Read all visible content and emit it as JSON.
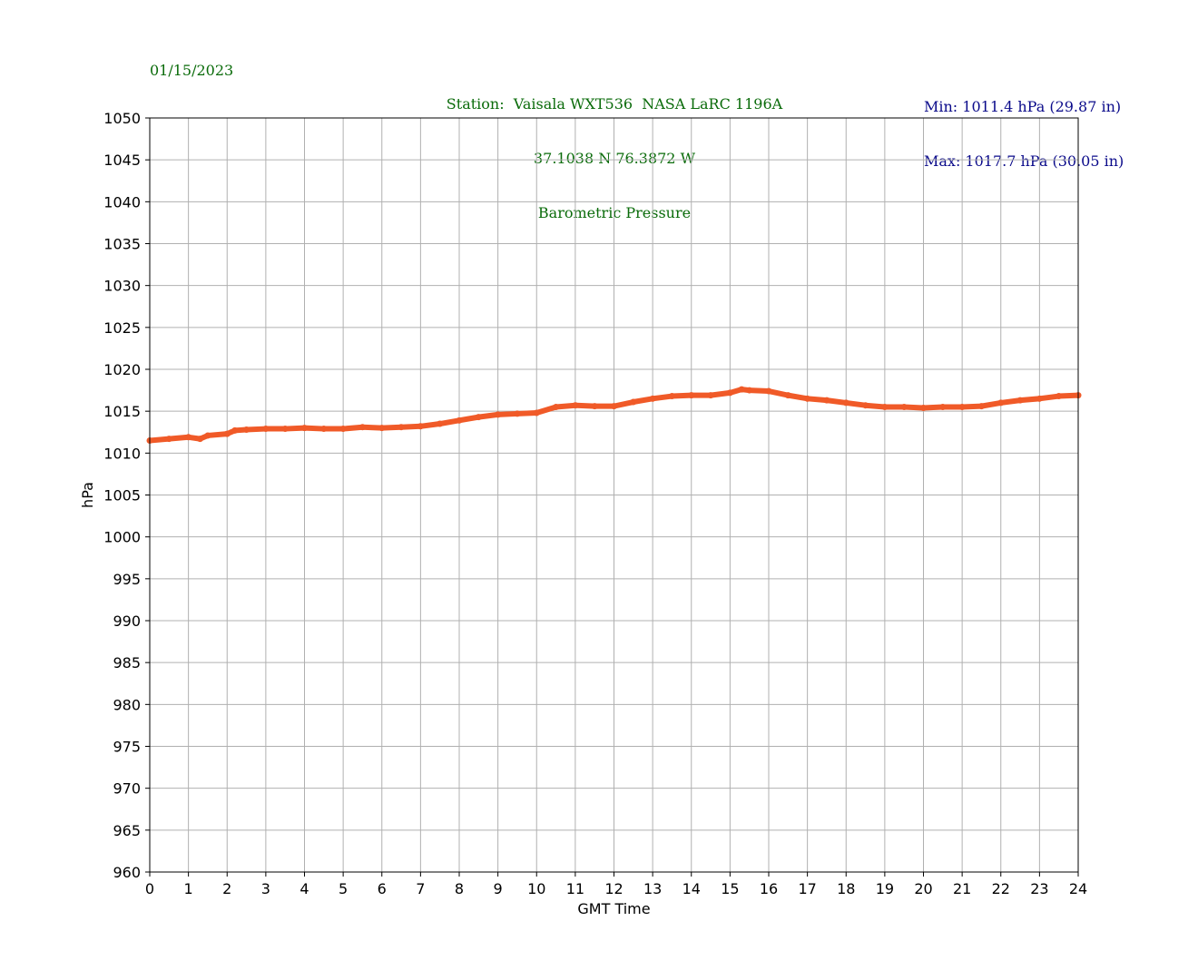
{
  "header": {
    "date": "01/15/2023",
    "station_line": "Station:  Vaisala WXT536  NASA LaRC 1196A",
    "coords_line": "37.1038 N 76.3872 W",
    "title_line": "Barometric Pressure",
    "min_line": "Min: 1011.4 hPa (29.87 in)",
    "max_line": "Max: 1017.7 hPa (30.05 in)"
  },
  "colors": {
    "header_green": "#0a6b0a",
    "header_navy": "#0a0a8a",
    "series": "#f05a28",
    "grid": "#b0b0b0"
  },
  "chart_data": {
    "type": "line",
    "xlabel": "GMT Time",
    "ylabel": "hPa",
    "xlim": [
      0,
      24
    ],
    "ylim": [
      960,
      1050
    ],
    "xticks": [
      0,
      1,
      2,
      3,
      4,
      5,
      6,
      7,
      8,
      9,
      10,
      11,
      12,
      13,
      14,
      15,
      16,
      17,
      18,
      19,
      20,
      21,
      22,
      23,
      24
    ],
    "yticks": [
      960,
      965,
      970,
      975,
      980,
      985,
      990,
      995,
      1000,
      1005,
      1010,
      1015,
      1020,
      1025,
      1030,
      1035,
      1040,
      1045,
      1050
    ],
    "grid": true,
    "series": [
      {
        "x": [
          0,
          0.5,
          1,
          1.3,
          1.5,
          2,
          2.2,
          2.5,
          3,
          3.5,
          4,
          4.5,
          5,
          5.5,
          6,
          6.5,
          7,
          7.5,
          8,
          8.5,
          9,
          9.5,
          10,
          10.5,
          11,
          11.5,
          12,
          12.5,
          13,
          13.5,
          14,
          14.5,
          15,
          15.3,
          15.5,
          16,
          16.5,
          17,
          17.5,
          18,
          18.5,
          19,
          19.5,
          20,
          20.5,
          21,
          21.5,
          22,
          22.5,
          23,
          23.5,
          24
        ],
        "y": [
          1011.5,
          1011.7,
          1011.9,
          1011.7,
          1012.1,
          1012.3,
          1012.7,
          1012.8,
          1012.9,
          1012.9,
          1013.0,
          1012.9,
          1012.9,
          1013.1,
          1013.0,
          1013.1,
          1013.2,
          1013.5,
          1013.9,
          1014.3,
          1014.6,
          1014.7,
          1014.8,
          1015.5,
          1015.7,
          1015.6,
          1015.6,
          1016.1,
          1016.5,
          1016.8,
          1016.9,
          1016.9,
          1017.2,
          1017.6,
          1017.5,
          1017.4,
          1016.9,
          1016.5,
          1016.3,
          1016.0,
          1015.7,
          1015.5,
          1015.5,
          1015.4,
          1015.5,
          1015.5,
          1015.6,
          1016.0,
          1016.3,
          1016.5,
          1016.8,
          1016.9
        ]
      }
    ]
  }
}
